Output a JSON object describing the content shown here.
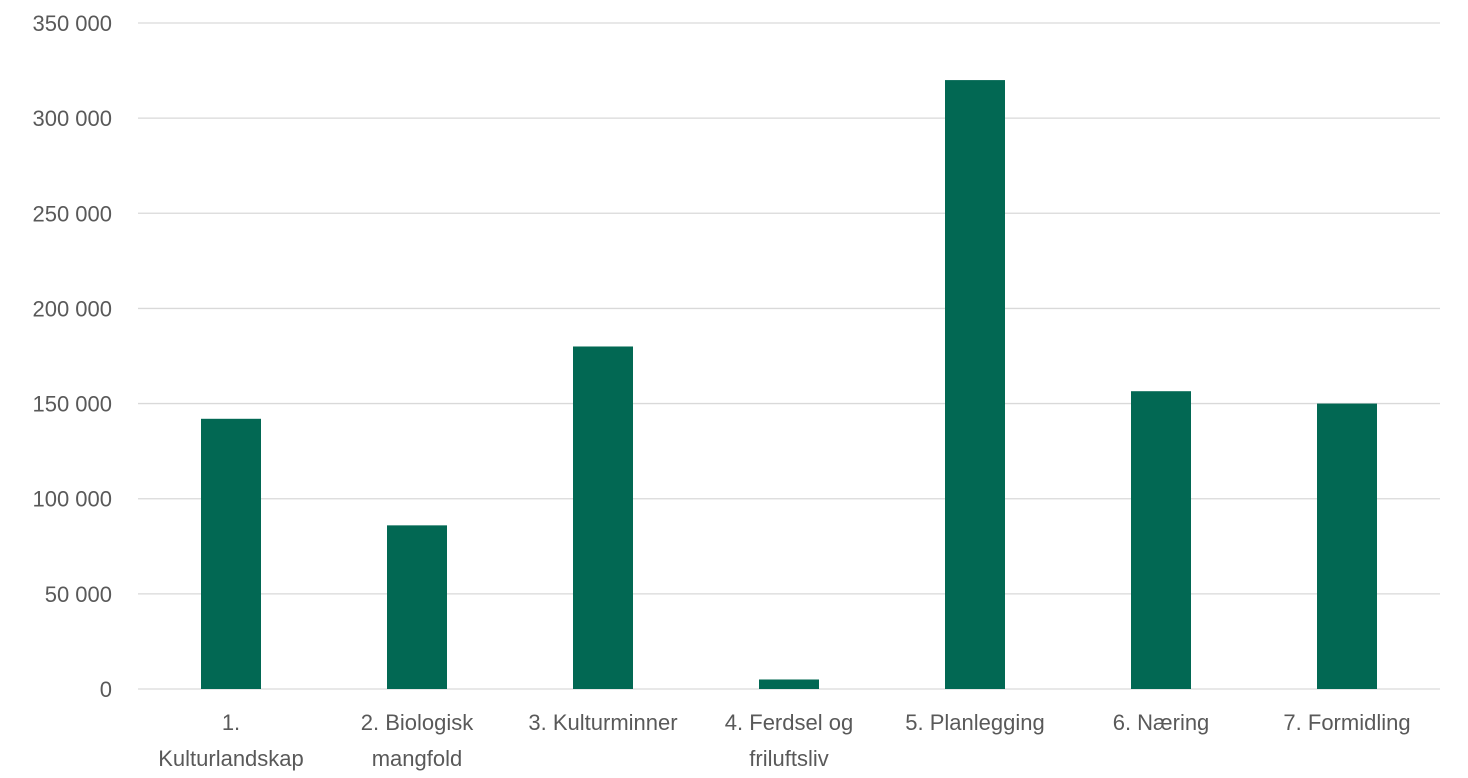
{
  "chart_data": {
    "type": "bar",
    "categories": [
      "1. Kulturlandskap",
      "2. Biologisk mangfold",
      "3. Kulturminner",
      "4. Ferdsel og friluftsliv",
      "5. Planlegging",
      "6. Næring",
      "7. Formidling"
    ],
    "category_lines": [
      [
        "1.",
        "Kulturlandskap"
      ],
      [
        "2. Biologisk",
        "mangfold"
      ],
      [
        "3. Kulturminner"
      ],
      [
        "4. Ferdsel og",
        "friluftsliv"
      ],
      [
        "5. Planlegging"
      ],
      [
        "6. Næring"
      ],
      [
        "7. Formidling"
      ]
    ],
    "values": [
      142000,
      86000,
      180000,
      5000,
      320000,
      156500,
      150000
    ],
    "ylim": [
      0,
      350000
    ],
    "yticks": [
      0,
      50000,
      100000,
      150000,
      200000,
      250000,
      300000,
      350000
    ],
    "ytick_labels": [
      "0",
      "50 000",
      "100 000",
      "150 000",
      "200 000",
      "250 000",
      "300 000",
      "350 000"
    ],
    "title": "",
    "xlabel": "",
    "ylabel": "",
    "grid": true,
    "legend": "none",
    "colors": {
      "bar": "#026853",
      "grid": "#d9d9d9",
      "text": "#595959"
    }
  }
}
